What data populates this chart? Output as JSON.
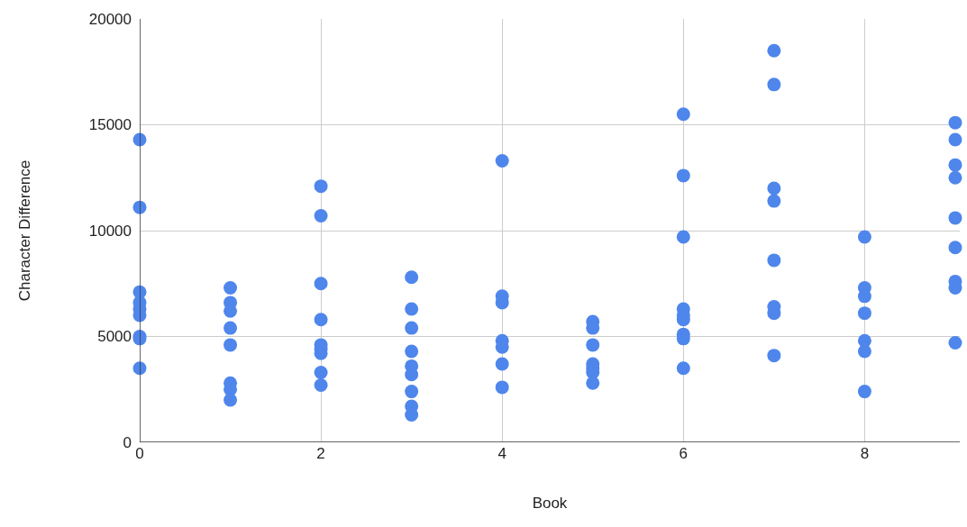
{
  "chart_data": {
    "type": "scatter",
    "xlabel": "Book",
    "ylabel": "Character Difference",
    "marker": "circle",
    "grid": true,
    "xlim": [
      0,
      9.05
    ],
    "xticks": [
      0,
      2,
      4,
      6,
      8
    ],
    "ylim": [
      0,
      20000
    ],
    "yticks": [
      0,
      5000,
      10000,
      15000,
      20000
    ],
    "series": [
      {
        "color": "#4f86ec",
        "x": [
          0,
          0,
          0,
          0,
          0,
          0,
          0,
          0,
          0,
          1,
          1,
          1,
          1,
          1,
          1,
          1,
          1,
          2,
          2,
          2,
          2,
          2,
          2,
          2,
          2,
          2,
          3,
          3,
          3,
          3,
          3,
          3,
          3,
          3,
          3,
          4,
          4,
          4,
          4,
          4,
          4,
          4,
          5,
          5,
          5,
          5,
          5,
          5,
          5,
          6,
          6,
          6,
          6,
          6,
          6,
          6,
          6,
          6,
          7,
          7,
          7,
          7,
          7,
          7,
          7,
          7,
          8,
          8,
          8,
          8,
          8,
          8,
          8,
          9,
          9,
          9,
          9,
          9,
          9,
          9,
          9,
          9
        ],
        "values": [
          14300,
          11100,
          7100,
          6600,
          6300,
          6000,
          5000,
          4900,
          3500,
          7300,
          6600,
          6200,
          5400,
          4600,
          2800,
          2500,
          2000,
          12100,
          10700,
          7500,
          5800,
          4600,
          4400,
          4200,
          3300,
          2700,
          7800,
          6300,
          5400,
          4300,
          3600,
          3200,
          2400,
          1700,
          1300,
          13300,
          6900,
          6600,
          4800,
          4500,
          3700,
          2600,
          5700,
          5400,
          4600,
          3700,
          3500,
          3300,
          2800,
          15500,
          12600,
          9700,
          6300,
          6000,
          5800,
          5100,
          4900,
          3500,
          18500,
          16900,
          12000,
          11400,
          8600,
          6400,
          6100,
          4100,
          9700,
          7300,
          6900,
          6100,
          4800,
          4300,
          2400,
          15100,
          14300,
          13100,
          12500,
          10600,
          9200,
          7600,
          7300,
          4700
        ]
      }
    ]
  }
}
